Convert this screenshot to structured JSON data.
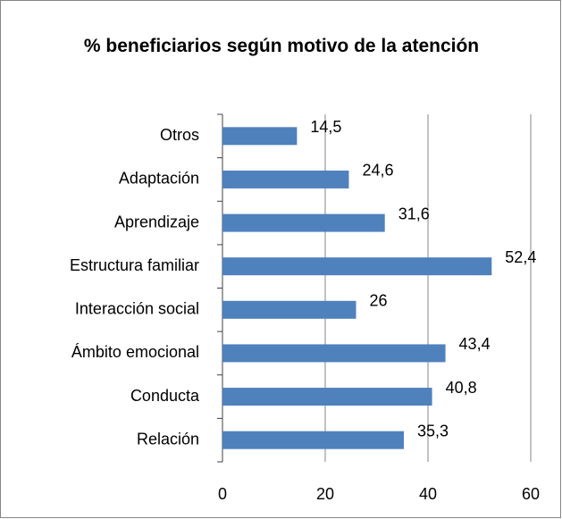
{
  "chart_data": {
    "type": "bar",
    "orientation": "horizontal",
    "title": "% beneficiarios según motivo de la atención",
    "categories": [
      "Otros",
      "Adaptación",
      "Aprendizaje",
      "Estructura familiar",
      "Interacción social",
      "Ámbito emocional",
      "Conducta",
      "Relación"
    ],
    "values": [
      14.5,
      24.6,
      31.6,
      52.4,
      26,
      43.4,
      40.8,
      35.3
    ],
    "value_labels": [
      "14,5",
      "24,6",
      "31,6",
      "52,4",
      "26",
      "43,4",
      "40,8",
      "35,3"
    ],
    "color": "#4f81bd",
    "xlim": [
      0,
      60
    ],
    "xticks": [
      0,
      20,
      40,
      60
    ],
    "grid": true
  }
}
